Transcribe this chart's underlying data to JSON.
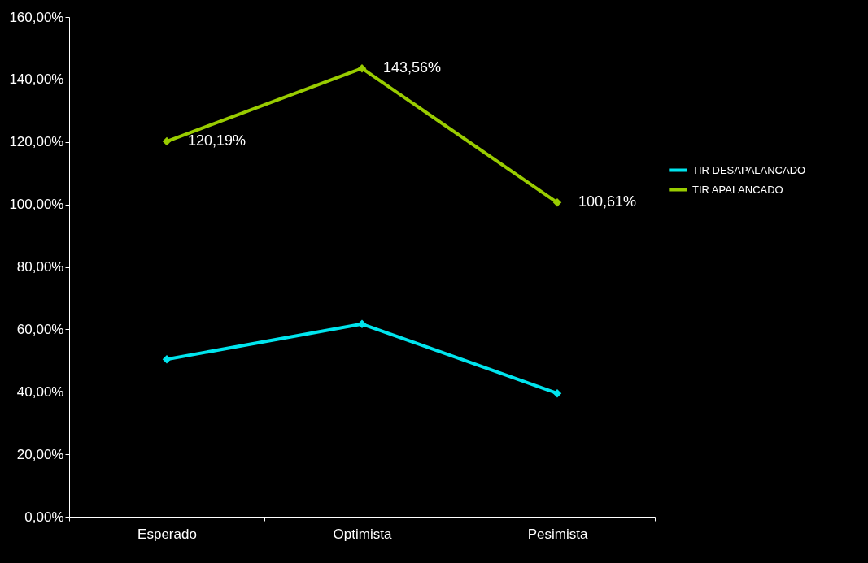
{
  "chart_data": {
    "type": "line",
    "categories": [
      "Esperado",
      "Optimista",
      "Pesimista"
    ],
    "series": [
      {
        "name": "TIR DESAPALANCADO",
        "color": "#00e5ee",
        "values": [
          50.4,
          61.7,
          39.5
        ]
      },
      {
        "name": "TIR APALANCADO",
        "color": "#99cc00",
        "values": [
          120.19,
          143.56,
          100.61
        ],
        "value_labels": [
          "120,19%",
          "143,56%",
          "100,61%"
        ]
      }
    ],
    "ylim": [
      0,
      160
    ],
    "yticks": [
      {
        "value": 0,
        "label": "0,00%"
      },
      {
        "value": 20,
        "label": "20,00%"
      },
      {
        "value": 40,
        "label": "40,00%"
      },
      {
        "value": 60,
        "label": "60,00%"
      },
      {
        "value": 80,
        "label": "80,00%"
      },
      {
        "value": 100,
        "label": "100,00%"
      },
      {
        "value": 120,
        "label": "120,00%"
      },
      {
        "value": 140,
        "label": "140,00%"
      },
      {
        "value": 160,
        "label": "160,00%"
      }
    ],
    "grid": false,
    "legend": "right",
    "marker": "diamond",
    "line_style": "solid"
  }
}
